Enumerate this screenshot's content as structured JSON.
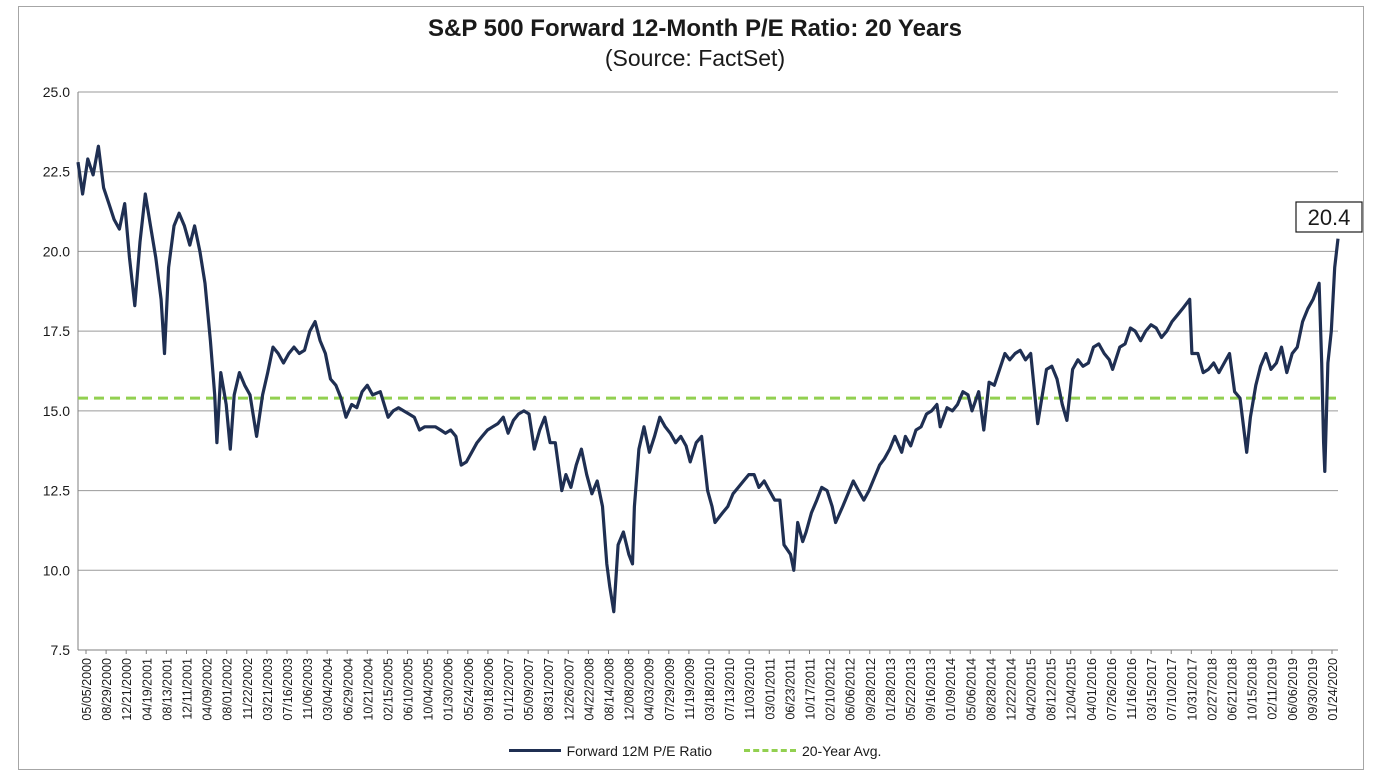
{
  "chart_data": {
    "type": "line",
    "title": "S&P 500 Forward 12-Month P/E Ratio: 20 Years",
    "subtitle": "(Source: FactSet)",
    "ylim": [
      7.5,
      25.0
    ],
    "yticks": [
      "25.0",
      "22.5",
      "20.0",
      "17.5",
      "15.0",
      "12.5",
      "10.0",
      "7.5"
    ],
    "xticks": [
      "05/05/2000",
      "08/29/2000",
      "12/21/2000",
      "04/19/2001",
      "08/13/2001",
      "12/11/2001",
      "04/09/2002",
      "08/01/2002",
      "11/22/2002",
      "03/21/2003",
      "07/16/2003",
      "11/06/2003",
      "03/04/2004",
      "06/29/2004",
      "10/21/2004",
      "02/15/2005",
      "06/10/2005",
      "10/04/2005",
      "01/30/2006",
      "05/24/2006",
      "09/18/2006",
      "01/12/2007",
      "05/09/2007",
      "08/31/2007",
      "12/26/2007",
      "04/22/2008",
      "08/14/2008",
      "12/08/2008",
      "04/03/2009",
      "07/29/2009",
      "11/19/2009",
      "03/18/2010",
      "07/13/2010",
      "11/03/2010",
      "03/01/2011",
      "06/23/2011",
      "10/17/2011",
      "02/10/2012",
      "06/06/2012",
      "09/28/2012",
      "01/28/2013",
      "05/22/2013",
      "09/16/2013",
      "01/09/2014",
      "05/06/2014",
      "08/28/2014",
      "12/22/2014",
      "04/20/2015",
      "08/12/2015",
      "12/04/2015",
      "04/01/2016",
      "07/26/2016",
      "11/16/2016",
      "03/15/2017",
      "07/10/2017",
      "10/31/2017",
      "02/27/2018",
      "06/21/2018",
      "10/15/2018",
      "02/11/2019",
      "06/06/2019",
      "09/30/2019",
      "01/24/2020"
    ],
    "grid": true,
    "legend_position": "bottom",
    "annotation": "20.4",
    "series": [
      {
        "name": "Forward 12M P/E Ratio",
        "color": "#1f2f52",
        "style": "solid",
        "points": [
          [
            "2000-05-05",
            22.8
          ],
          [
            "2000-06-01",
            21.8
          ],
          [
            "2000-07-01",
            22.9
          ],
          [
            "2000-08-01",
            22.4
          ],
          [
            "2000-09-01",
            23.3
          ],
          [
            "2000-10-01",
            22.0
          ],
          [
            "2000-11-01",
            21.5
          ],
          [
            "2000-12-01",
            21.0
          ],
          [
            "2001-01-01",
            20.7
          ],
          [
            "2001-02-01",
            21.5
          ],
          [
            "2001-03-01",
            19.8
          ],
          [
            "2001-04-01",
            18.3
          ],
          [
            "2001-05-01",
            20.3
          ],
          [
            "2001-06-01",
            21.8
          ],
          [
            "2001-07-01",
            20.8
          ],
          [
            "2001-08-01",
            19.8
          ],
          [
            "2001-09-01",
            18.5
          ],
          [
            "2001-09-21",
            16.8
          ],
          [
            "2001-10-15",
            19.5
          ],
          [
            "2001-11-15",
            20.8
          ],
          [
            "2001-12-15",
            21.2
          ],
          [
            "2002-01-15",
            20.8
          ],
          [
            "2002-02-15",
            20.2
          ],
          [
            "2002-03-15",
            20.8
          ],
          [
            "2002-04-15",
            20.0
          ],
          [
            "2002-05-15",
            19.0
          ],
          [
            "2002-06-15",
            17.2
          ],
          [
            "2002-07-10",
            15.5
          ],
          [
            "2002-07-23",
            14.0
          ],
          [
            "2002-08-15",
            16.2
          ],
          [
            "2002-09-15",
            15.2
          ],
          [
            "2002-10-09",
            13.8
          ],
          [
            "2002-11-01",
            15.5
          ],
          [
            "2002-12-01",
            16.2
          ],
          [
            "2003-01-01",
            15.8
          ],
          [
            "2003-02-01",
            15.5
          ],
          [
            "2003-03-11",
            14.2
          ],
          [
            "2003-04-15",
            15.5
          ],
          [
            "2003-05-15",
            16.2
          ],
          [
            "2003-06-15",
            17.0
          ],
          [
            "2003-07-15",
            16.8
          ],
          [
            "2003-08-15",
            16.5
          ],
          [
            "2003-09-15",
            16.8
          ],
          [
            "2003-10-15",
            17.0
          ],
          [
            "2003-11-15",
            16.8
          ],
          [
            "2003-12-15",
            16.9
          ],
          [
            "2004-01-15",
            17.5
          ],
          [
            "2004-02-15",
            17.8
          ],
          [
            "2004-03-15",
            17.2
          ],
          [
            "2004-04-15",
            16.8
          ],
          [
            "2004-05-15",
            16.0
          ],
          [
            "2004-06-15",
            15.8
          ],
          [
            "2004-07-15",
            15.4
          ],
          [
            "2004-08-13",
            14.8
          ],
          [
            "2004-09-15",
            15.2
          ],
          [
            "2004-10-15",
            15.1
          ],
          [
            "2004-11-15",
            15.6
          ],
          [
            "2004-12-15",
            15.8
          ],
          [
            "2005-01-15",
            15.5
          ],
          [
            "2005-03-01",
            15.6
          ],
          [
            "2005-04-15",
            14.8
          ],
          [
            "2005-05-15",
            15.0
          ],
          [
            "2005-06-15",
            15.1
          ],
          [
            "2005-07-15",
            15.0
          ],
          [
            "2005-08-15",
            14.9
          ],
          [
            "2005-09-15",
            14.8
          ],
          [
            "2005-10-15",
            14.4
          ],
          [
            "2005-11-15",
            14.5
          ],
          [
            "2005-12-15",
            14.5
          ],
          [
            "2006-01-15",
            14.5
          ],
          [
            "2006-02-15",
            14.4
          ],
          [
            "2006-03-15",
            14.3
          ],
          [
            "2006-04-15",
            14.4
          ],
          [
            "2006-05-15",
            14.2
          ],
          [
            "2006-06-15",
            13.3
          ],
          [
            "2006-07-15",
            13.4
          ],
          [
            "2006-08-15",
            13.7
          ],
          [
            "2006-09-15",
            14.0
          ],
          [
            "2006-10-15",
            14.2
          ],
          [
            "2006-11-15",
            14.4
          ],
          [
            "2006-12-15",
            14.5
          ],
          [
            "2007-01-15",
            14.6
          ],
          [
            "2007-02-15",
            14.8
          ],
          [
            "2007-03-15",
            14.3
          ],
          [
            "2007-04-15",
            14.7
          ],
          [
            "2007-05-15",
            14.9
          ],
          [
            "2007-06-15",
            15.0
          ],
          [
            "2007-07-15",
            14.9
          ],
          [
            "2007-08-15",
            13.8
          ],
          [
            "2007-09-15",
            14.4
          ],
          [
            "2007-10-15",
            14.8
          ],
          [
            "2007-11-15",
            14.0
          ],
          [
            "2007-12-15",
            14.0
          ],
          [
            "2008-01-22",
            12.5
          ],
          [
            "2008-02-15",
            13.0
          ],
          [
            "2008-03-15",
            12.6
          ],
          [
            "2008-04-15",
            13.3
          ],
          [
            "2008-05-15",
            13.8
          ],
          [
            "2008-06-15",
            13.0
          ],
          [
            "2008-07-15",
            12.4
          ],
          [
            "2008-08-15",
            12.8
          ],
          [
            "2008-09-15",
            12.0
          ],
          [
            "2008-10-10",
            10.2
          ],
          [
            "2008-10-27",
            9.5
          ],
          [
            "2008-11-20",
            8.7
          ],
          [
            "2008-12-15",
            10.8
          ],
          [
            "2009-01-15",
            11.2
          ],
          [
            "2009-02-15",
            10.5
          ],
          [
            "2009-03-09",
            10.2
          ],
          [
            "2009-03-20",
            12.0
          ],
          [
            "2009-04-15",
            13.8
          ],
          [
            "2009-05-15",
            14.5
          ],
          [
            "2009-06-15",
            13.7
          ],
          [
            "2009-07-15",
            14.2
          ],
          [
            "2009-08-15",
            14.8
          ],
          [
            "2009-09-15",
            14.5
          ],
          [
            "2009-10-15",
            14.3
          ],
          [
            "2009-11-15",
            14.0
          ],
          [
            "2009-12-15",
            14.2
          ],
          [
            "2010-01-15",
            13.9
          ],
          [
            "2010-02-08",
            13.4
          ],
          [
            "2010-03-15",
            14.0
          ],
          [
            "2010-04-15",
            14.2
          ],
          [
            "2010-05-20",
            12.5
          ],
          [
            "2010-06-15",
            12.0
          ],
          [
            "2010-07-02",
            11.5
          ],
          [
            "2010-08-15",
            11.8
          ],
          [
            "2010-09-15",
            12.0
          ],
          [
            "2010-10-15",
            12.4
          ],
          [
            "2010-11-15",
            12.6
          ],
          [
            "2010-12-15",
            12.8
          ],
          [
            "2011-01-15",
            13.0
          ],
          [
            "2011-02-15",
            13.0
          ],
          [
            "2011-03-15",
            12.6
          ],
          [
            "2011-04-15",
            12.8
          ],
          [
            "2011-05-15",
            12.5
          ],
          [
            "2011-06-15",
            12.2
          ],
          [
            "2011-07-15",
            12.2
          ],
          [
            "2011-08-08",
            10.8
          ],
          [
            "2011-09-15",
            10.5
          ],
          [
            "2011-10-04",
            10.0
          ],
          [
            "2011-10-27",
            11.5
          ],
          [
            "2011-11-25",
            10.9
          ],
          [
            "2011-12-15",
            11.2
          ],
          [
            "2012-01-15",
            11.8
          ],
          [
            "2012-02-15",
            12.2
          ],
          [
            "2012-03-15",
            12.6
          ],
          [
            "2012-04-15",
            12.5
          ],
          [
            "2012-05-15",
            12.0
          ],
          [
            "2012-06-04",
            11.5
          ],
          [
            "2012-07-15",
            12.0
          ],
          [
            "2012-08-15",
            12.4
          ],
          [
            "2012-09-15",
            12.8
          ],
          [
            "2012-10-15",
            12.5
          ],
          [
            "2012-11-15",
            12.2
          ],
          [
            "2012-12-15",
            12.5
          ],
          [
            "2013-01-15",
            12.9
          ],
          [
            "2013-02-15",
            13.3
          ],
          [
            "2013-03-15",
            13.5
          ],
          [
            "2013-04-15",
            13.8
          ],
          [
            "2013-05-15",
            14.2
          ],
          [
            "2013-06-24",
            13.7
          ],
          [
            "2013-07-15",
            14.2
          ],
          [
            "2013-08-15",
            13.9
          ],
          [
            "2013-09-15",
            14.4
          ],
          [
            "2013-10-15",
            14.5
          ],
          [
            "2013-11-15",
            14.9
          ],
          [
            "2013-12-15",
            15.0
          ],
          [
            "2014-01-15",
            15.2
          ],
          [
            "2014-02-03",
            14.5
          ],
          [
            "2014-03-15",
            15.1
          ],
          [
            "2014-04-15",
            15.0
          ],
          [
            "2014-05-15",
            15.2
          ],
          [
            "2014-06-15",
            15.6
          ],
          [
            "2014-07-15",
            15.5
          ],
          [
            "2014-08-07",
            15.0
          ],
          [
            "2014-09-15",
            15.6
          ],
          [
            "2014-10-15",
            14.4
          ],
          [
            "2014-11-15",
            15.9
          ],
          [
            "2014-12-15",
            15.8
          ],
          [
            "2015-01-15",
            16.3
          ],
          [
            "2015-02-15",
            16.8
          ],
          [
            "2015-03-15",
            16.6
          ],
          [
            "2015-04-15",
            16.8
          ],
          [
            "2015-05-15",
            16.9
          ],
          [
            "2015-06-15",
            16.6
          ],
          [
            "2015-07-15",
            16.8
          ],
          [
            "2015-08-25",
            14.6
          ],
          [
            "2015-09-15",
            15.3
          ],
          [
            "2015-10-15",
            16.3
          ],
          [
            "2015-11-15",
            16.4
          ],
          [
            "2015-12-15",
            16.0
          ],
          [
            "2016-01-15",
            15.2
          ],
          [
            "2016-02-11",
            14.7
          ],
          [
            "2016-03-15",
            16.3
          ],
          [
            "2016-04-15",
            16.6
          ],
          [
            "2016-05-15",
            16.4
          ],
          [
            "2016-06-15",
            16.5
          ],
          [
            "2016-07-15",
            17.0
          ],
          [
            "2016-08-15",
            17.1
          ],
          [
            "2016-09-15",
            16.8
          ],
          [
            "2016-10-15",
            16.6
          ],
          [
            "2016-11-03",
            16.3
          ],
          [
            "2016-12-15",
            17.0
          ],
          [
            "2017-01-15",
            17.1
          ],
          [
            "2017-02-15",
            17.6
          ],
          [
            "2017-03-15",
            17.5
          ],
          [
            "2017-04-15",
            17.2
          ],
          [
            "2017-05-15",
            17.5
          ],
          [
            "2017-06-15",
            17.7
          ],
          [
            "2017-07-15",
            17.6
          ],
          [
            "2017-08-15",
            17.3
          ],
          [
            "2017-09-15",
            17.5
          ],
          [
            "2017-10-15",
            17.8
          ],
          [
            "2017-11-15",
            18.0
          ],
          [
            "2017-12-15",
            18.2
          ],
          [
            "2018-01-26",
            18.5
          ],
          [
            "2018-02-08",
            16.8
          ],
          [
            "2018-03-15",
            16.8
          ],
          [
            "2018-04-15",
            16.2
          ],
          [
            "2018-05-15",
            16.3
          ],
          [
            "2018-06-15",
            16.5
          ],
          [
            "2018-07-15",
            16.2
          ],
          [
            "2018-08-15",
            16.5
          ],
          [
            "2018-09-15",
            16.8
          ],
          [
            "2018-10-15",
            15.6
          ],
          [
            "2018-11-15",
            15.4
          ],
          [
            "2018-12-24",
            13.7
          ],
          [
            "2019-01-15",
            14.8
          ],
          [
            "2019-02-15",
            15.8
          ],
          [
            "2019-03-15",
            16.4
          ],
          [
            "2019-04-15",
            16.8
          ],
          [
            "2019-05-15",
            16.3
          ],
          [
            "2019-06-15",
            16.5
          ],
          [
            "2019-07-15",
            17.0
          ],
          [
            "2019-08-15",
            16.2
          ],
          [
            "2019-09-15",
            16.8
          ],
          [
            "2019-10-15",
            17.0
          ],
          [
            "2019-11-15",
            17.8
          ],
          [
            "2019-12-15",
            18.2
          ],
          [
            "2020-01-15",
            18.5
          ],
          [
            "2020-02-19",
            19.0
          ],
          [
            "2020-03-05",
            16.5
          ],
          [
            "2020-03-16",
            14.0
          ],
          [
            "2020-03-23",
            13.1
          ],
          [
            "2020-04-10",
            16.5
          ],
          [
            "2020-04-30",
            17.5
          ],
          [
            "2020-05-20",
            19.5
          ],
          [
            "2020-06-08",
            20.4
          ]
        ]
      },
      {
        "name": "20-Year Avg.",
        "color": "#92d050",
        "style": "dashed",
        "points": [
          [
            "2000-05-05",
            15.4
          ],
          [
            "2020-06-08",
            15.4
          ]
        ]
      }
    ]
  }
}
